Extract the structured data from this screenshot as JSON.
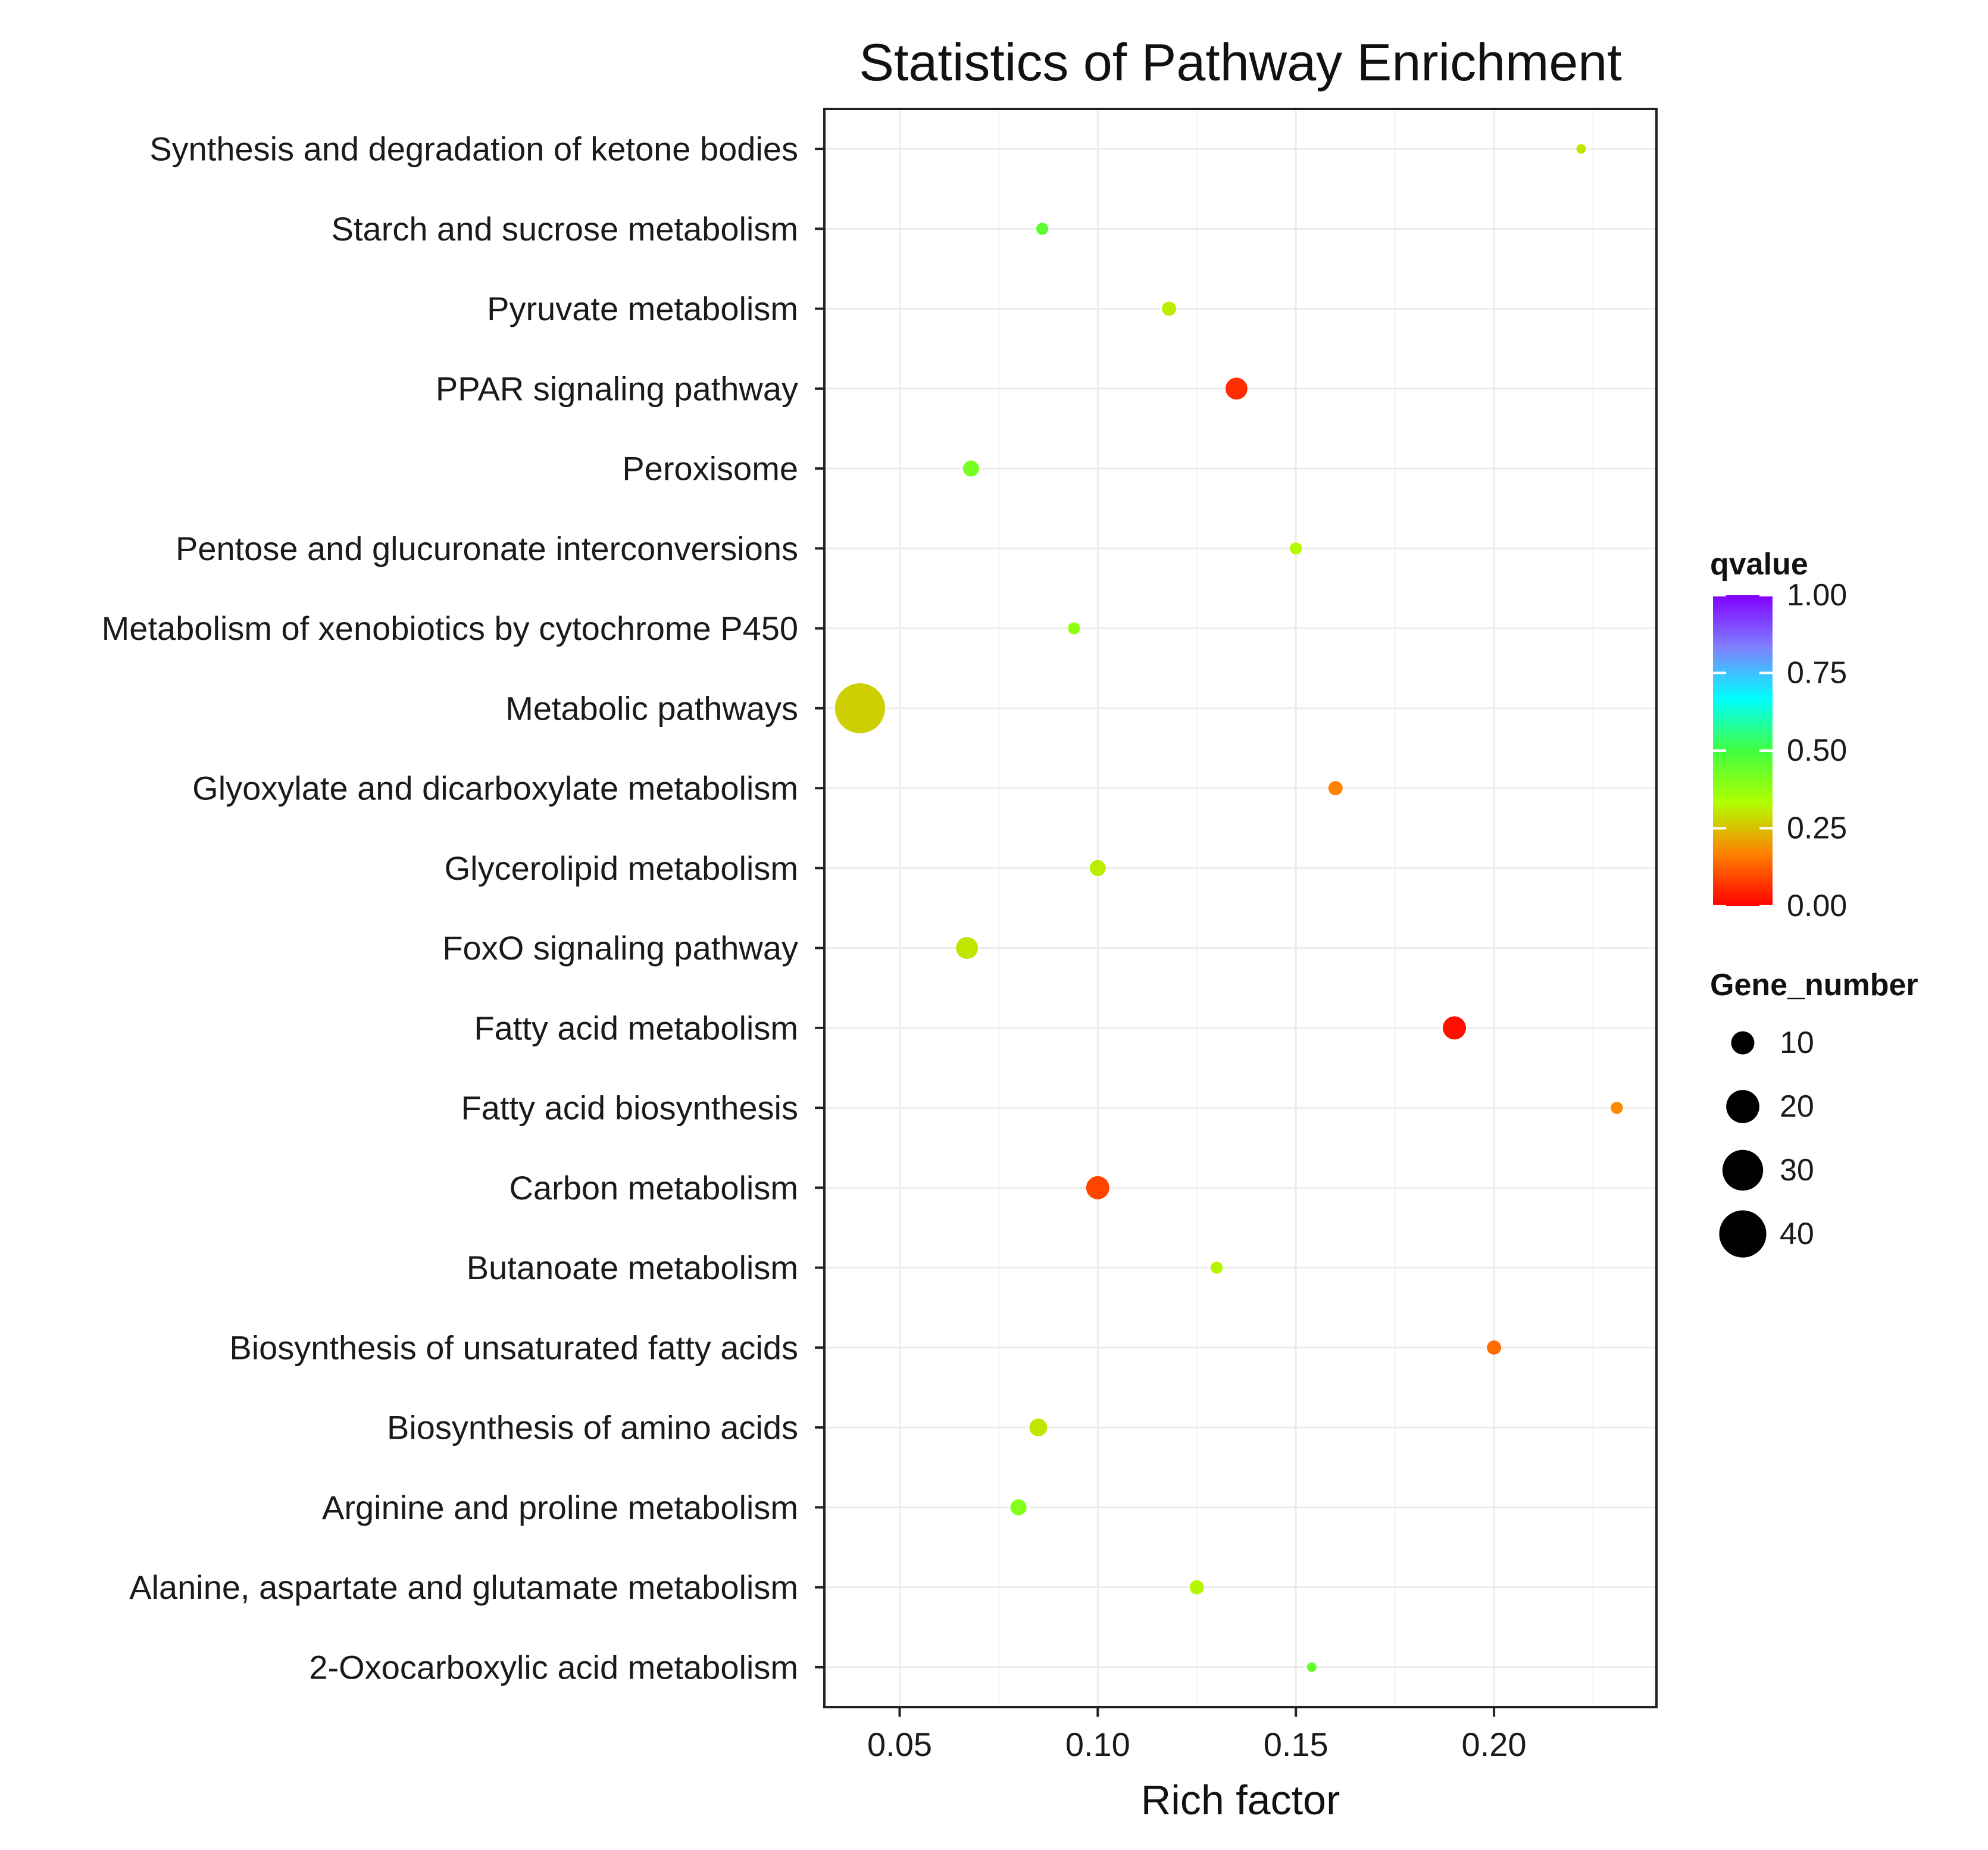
{
  "chart_data": {
    "type": "scatter",
    "title": "Statistics of Pathway Enrichment",
    "xlabel": "Rich factor",
    "ylabel": "",
    "xlim": [
      0.031,
      0.241
    ],
    "xticks": [
      "0.05",
      "0.10",
      "0.15",
      "0.20"
    ],
    "grid": true,
    "categories": [
      "Synthesis and degradation of ketone bodies",
      "Starch and sucrose metabolism",
      "Pyruvate metabolism",
      "PPAR signaling pathway",
      "Peroxisome",
      "Pentose and glucuronate interconversions",
      "Metabolism of xenobiotics by cytochrome P450",
      "Metabolic pathways",
      "Glyoxylate and dicarboxylate metabolism",
      "Glycerolipid metabolism",
      "FoxO signaling pathway",
      "Fatty acid metabolism",
      "Fatty acid biosynthesis",
      "Carbon metabolism",
      "Butanoate metabolism",
      "Biosynthesis of unsaturated fatty acids",
      "Biosynthesis of amino acids",
      "Arginine and proline metabolism",
      "Alanine, aspartate and glutamate metabolism",
      "2-Oxocarboxylic acid metabolism"
    ],
    "points": [
      {
        "pathway": "Synthesis and degradation of ketone bodies",
        "rich_factor": 0.222,
        "qvalue": 0.3,
        "gene_number": 2
      },
      {
        "pathway": "Starch and sucrose metabolism",
        "rich_factor": 0.086,
        "qvalue": 0.46,
        "gene_number": 3
      },
      {
        "pathway": "Pyruvate metabolism",
        "rich_factor": 0.118,
        "qvalue": 0.31,
        "gene_number": 4
      },
      {
        "pathway": "PPAR signaling pathway",
        "rich_factor": 0.135,
        "qvalue": 0.06,
        "gene_number": 9
      },
      {
        "pathway": "Peroxisome",
        "rich_factor": 0.068,
        "qvalue": 0.42,
        "gene_number": 5
      },
      {
        "pathway": "Pentose and glucuronate interconversions",
        "rich_factor": 0.15,
        "qvalue": 0.33,
        "gene_number": 3
      },
      {
        "pathway": "Metabolism of xenobiotics by cytochrome P450",
        "rich_factor": 0.094,
        "qvalue": 0.38,
        "gene_number": 3
      },
      {
        "pathway": "Metabolic pathways",
        "rich_factor": 0.04,
        "qvalue": 0.27,
        "gene_number": 45
      },
      {
        "pathway": "Glyoxylate and dicarboxylate metabolism",
        "rich_factor": 0.16,
        "qvalue": 0.17,
        "gene_number": 4
      },
      {
        "pathway": "Glycerolipid metabolism",
        "rich_factor": 0.1,
        "qvalue": 0.31,
        "gene_number": 5
      },
      {
        "pathway": "FoxO signaling pathway",
        "rich_factor": 0.067,
        "qvalue": 0.3,
        "gene_number": 9
      },
      {
        "pathway": "Fatty acid metabolism",
        "rich_factor": 0.19,
        "qvalue": 0.02,
        "gene_number": 10
      },
      {
        "pathway": "Fatty acid biosynthesis",
        "rich_factor": 0.231,
        "qvalue": 0.18,
        "gene_number": 3
      },
      {
        "pathway": "Carbon metabolism",
        "rich_factor": 0.1,
        "qvalue": 0.09,
        "gene_number": 10
      },
      {
        "pathway": "Butanoate metabolism",
        "rich_factor": 0.13,
        "qvalue": 0.32,
        "gene_number": 3
      },
      {
        "pathway": "Biosynthesis of unsaturated fatty acids",
        "rich_factor": 0.2,
        "qvalue": 0.14,
        "gene_number": 4
      },
      {
        "pathway": "Biosynthesis of amino acids",
        "rich_factor": 0.085,
        "qvalue": 0.3,
        "gene_number": 6
      },
      {
        "pathway": "Arginine and proline metabolism",
        "rich_factor": 0.08,
        "qvalue": 0.4,
        "gene_number": 5
      },
      {
        "pathway": "Alanine, aspartate and glutamate metabolism",
        "rich_factor": 0.125,
        "qvalue": 0.32,
        "gene_number": 4
      },
      {
        "pathway": "2-Oxocarboxylic acid metabolism",
        "rich_factor": 0.154,
        "qvalue": 0.45,
        "gene_number": 2
      }
    ],
    "color_legend": {
      "title": "qvalue",
      "range": [
        0,
        1
      ],
      "tick_labels": [
        "1.00",
        "0.75",
        "0.50",
        "0.25",
        "0.00"
      ],
      "tick_values": [
        1.0,
        0.75,
        0.5,
        0.25,
        0.0
      ],
      "colors": [
        "#ff0000",
        "#ff8000",
        "#b0ff00",
        "#40ff40",
        "#00ffff",
        "#8080ff",
        "#8000ff"
      ]
    },
    "size_legend": {
      "title": "Gene_number",
      "values": [
        10,
        20,
        30,
        40
      ],
      "labels": [
        "10",
        "20",
        "30",
        "40"
      ],
      "range": [
        2,
        45
      ]
    },
    "legend_position": "right"
  }
}
